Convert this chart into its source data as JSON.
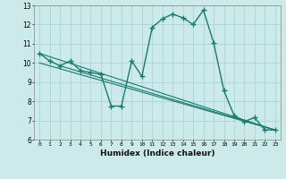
{
  "xlabel": "Humidex (Indice chaleur)",
  "bg_color": "#cceaea",
  "grid_color": "#aad4d4",
  "line_color": "#1a7a6e",
  "xlim": [
    -0.5,
    23.5
  ],
  "ylim": [
    6,
    13
  ],
  "yticks": [
    6,
    7,
    8,
    9,
    10,
    11,
    12,
    13
  ],
  "xticks": [
    0,
    1,
    2,
    3,
    4,
    5,
    6,
    7,
    8,
    9,
    10,
    11,
    12,
    13,
    14,
    15,
    16,
    17,
    18,
    19,
    20,
    21,
    22,
    23
  ],
  "series": [
    [
      0,
      10.5
    ],
    [
      1,
      10.1
    ],
    [
      2,
      9.85
    ],
    [
      3,
      10.1
    ],
    [
      4,
      9.6
    ],
    [
      5,
      9.5
    ],
    [
      6,
      9.4
    ],
    [
      7,
      7.75
    ],
    [
      8,
      7.75
    ],
    [
      9,
      10.1
    ],
    [
      10,
      9.3
    ],
    [
      11,
      11.85
    ],
    [
      12,
      12.3
    ],
    [
      13,
      12.55
    ],
    [
      14,
      12.35
    ],
    [
      15,
      12.0
    ],
    [
      16,
      12.75
    ],
    [
      17,
      11.05
    ],
    [
      18,
      8.55
    ],
    [
      19,
      7.25
    ],
    [
      20,
      6.95
    ],
    [
      21,
      7.15
    ],
    [
      22,
      6.5
    ],
    [
      23,
      6.5
    ]
  ],
  "trend_lines": [
    [
      [
        0,
        10.5
      ],
      [
        23,
        6.5
      ]
    ],
    [
      [
        0,
        10.0
      ],
      [
        23,
        6.5
      ]
    ],
    [
      [
        2,
        9.85
      ],
      [
        23,
        6.5
      ]
    ]
  ]
}
